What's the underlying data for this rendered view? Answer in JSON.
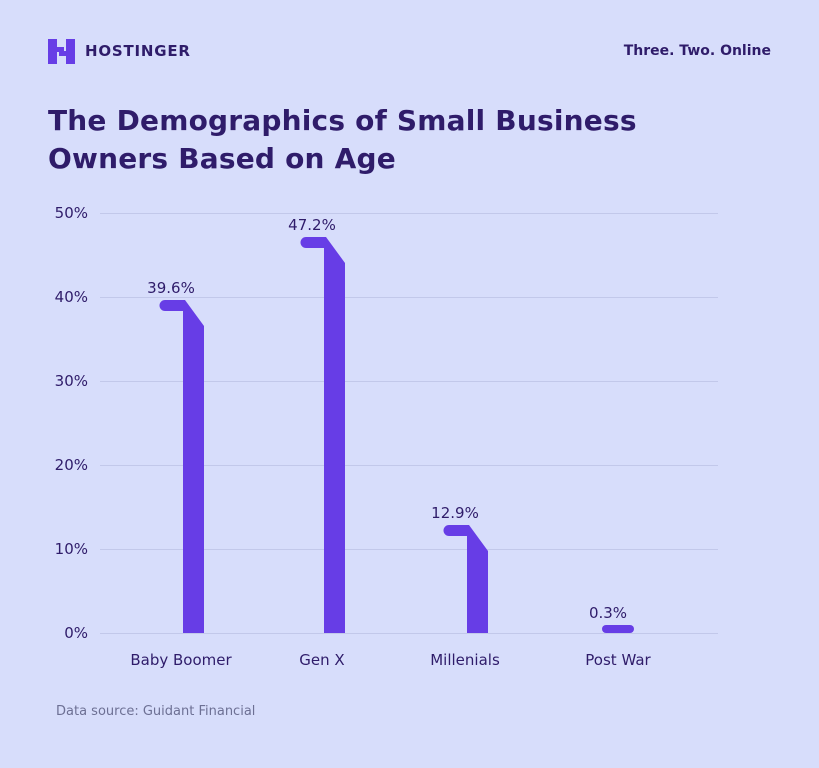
{
  "header": {
    "brand": "HOSTINGER",
    "tagline": "Three. Two. Online"
  },
  "title_lines": [
    "The Demographics of Small Business",
    "Owners Based on Age"
  ],
  "source": "Data source: Guidant Financial",
  "colors": {
    "background": "#d7ddfb",
    "bar": "#673de6",
    "text": "#2f1c6a",
    "grid": "#c2c8ea",
    "muted": "#6d7094"
  },
  "chart_data": {
    "type": "bar",
    "title": "The Demographics of Small Business Owners Based on Age",
    "categories": [
      "Baby Boomer",
      "Gen X",
      "Millenials",
      "Post War"
    ],
    "values": [
      39.6,
      47.2,
      12.9,
      0.3
    ],
    "value_labels": [
      "39.6%",
      "47.2%",
      "12.9%",
      "0.3%"
    ],
    "unit": "%",
    "ylim": [
      0,
      50
    ],
    "y_ticks": [
      50,
      40,
      30,
      20,
      10,
      0
    ],
    "y_tick_labels": [
      "50%",
      "40%",
      "30%",
      "20%",
      "10%",
      "0%"
    ],
    "grid": true,
    "legend": false,
    "bar_color": "#673de6",
    "source": "Data source: Guidant Financial"
  }
}
